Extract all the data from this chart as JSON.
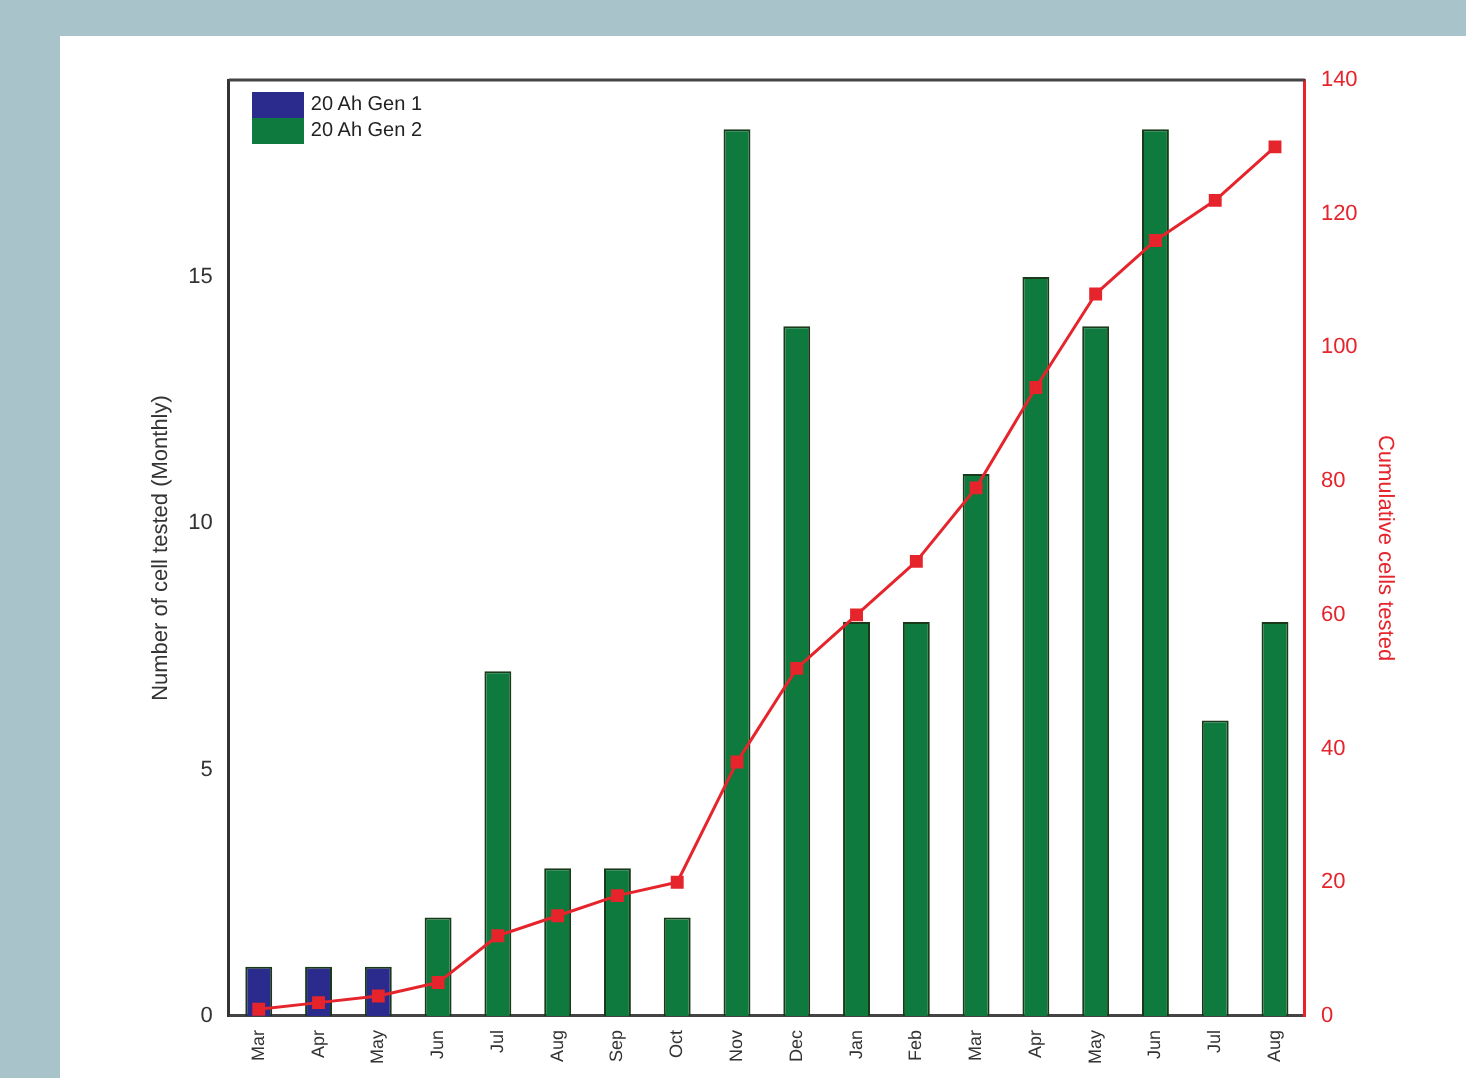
{
  "chart_data": {
    "type": "bar",
    "ylabel": "Number of cell tested (Monthly)",
    "y2label": "Cumulative cells tested",
    "categories": [
      "Mar",
      "Apr",
      "May",
      "Jun",
      "Jul",
      "Aug",
      "Sep",
      "Oct",
      "Nov",
      "Dec",
      "Jan",
      "Feb",
      "Mar",
      "Apr",
      "May",
      "Jun",
      "Jul",
      "Aug"
    ],
    "series": [
      {
        "name": "20 Ah Gen 1",
        "color": "#2b2b8e",
        "values": [
          1,
          1,
          1,
          null,
          null,
          null,
          null,
          null,
          null,
          null,
          null,
          null,
          null,
          null,
          null,
          null,
          null,
          null
        ]
      },
      {
        "name": "20 Ah Gen 2",
        "color": "#0e7a3e",
        "values": [
          null,
          null,
          null,
          2,
          7,
          3,
          3,
          2,
          18,
          14,
          8,
          8,
          11,
          15,
          14,
          18,
          6,
          8
        ]
      },
      {
        "type": "line",
        "axis": "y2",
        "color": "#e5242c",
        "marker": "square",
        "values": [
          1,
          2,
          3,
          5,
          12,
          15,
          18,
          20,
          38,
          52,
          60,
          68,
          79,
          94,
          108,
          116,
          122,
          130
        ]
      }
    ],
    "ylim": [
      0,
      19
    ],
    "yticks": [
      0,
      5,
      10,
      15
    ],
    "y2lim": [
      0,
      140
    ],
    "y2ticks": [
      0,
      20,
      40,
      60,
      80,
      100,
      120,
      140
    ],
    "grid": false,
    "legend": "top left"
  }
}
